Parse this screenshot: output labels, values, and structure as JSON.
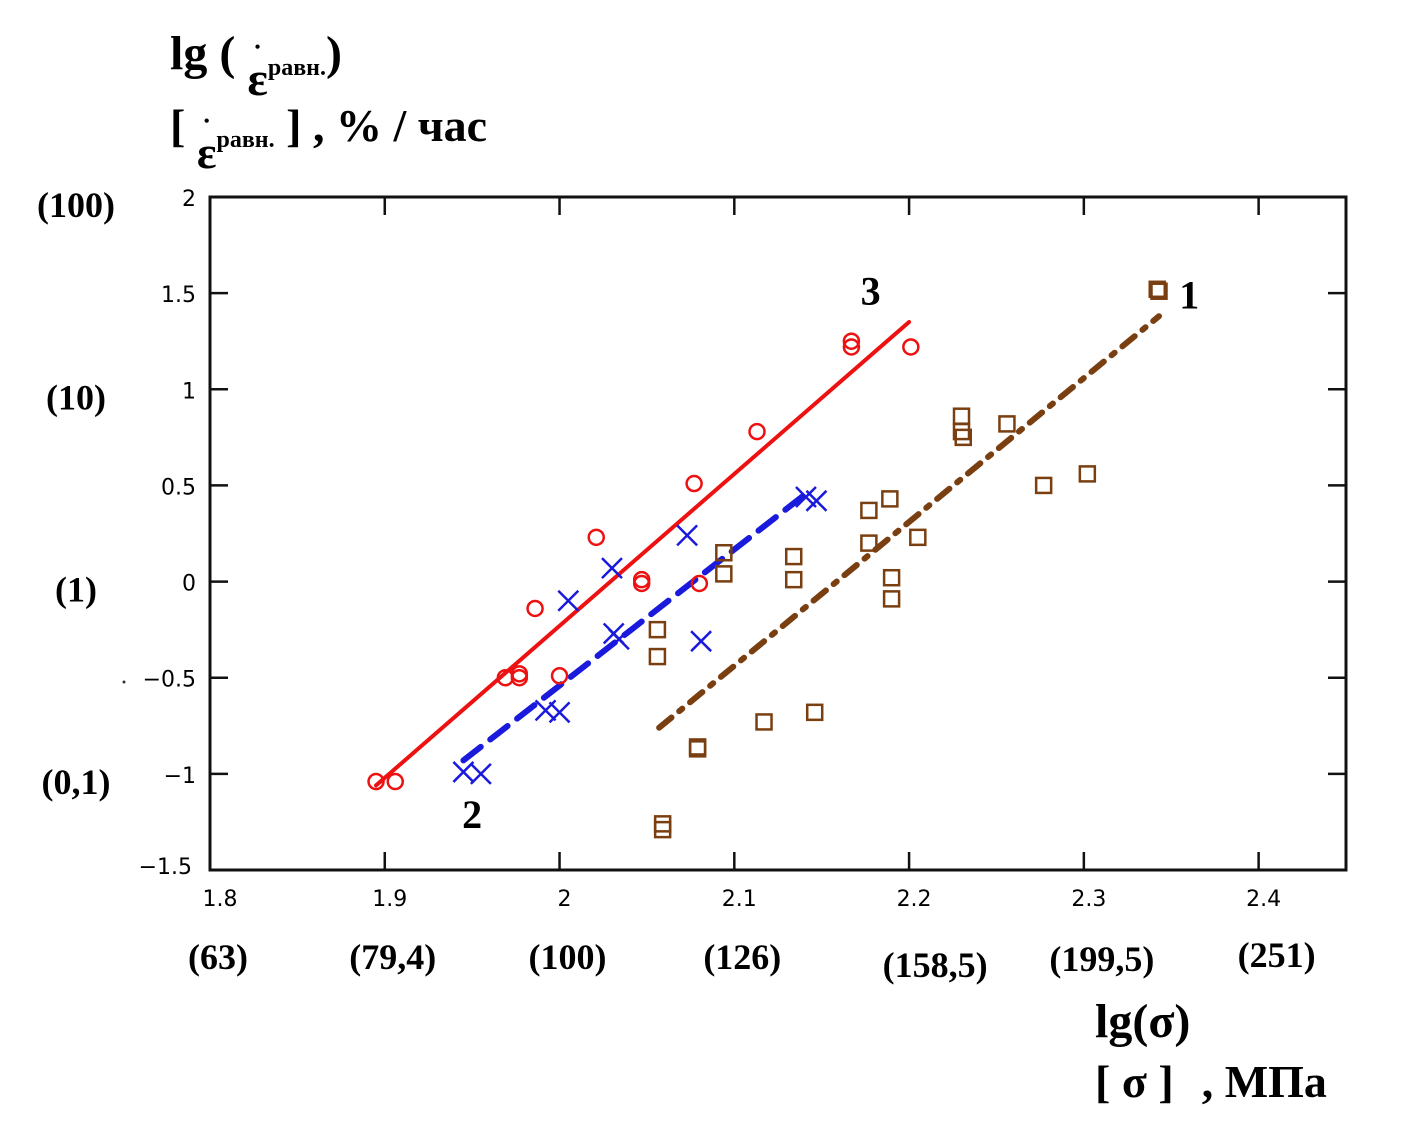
{
  "chart_data": {
    "type": "scatter",
    "title": "",
    "ylabel": {
      "line1_prefix": "lg (",
      "symbol": "ε",
      "dot": "•",
      "subscript": "равн.",
      "line1_suffix": ")",
      "line2_open": "[",
      "line2_close": "]",
      "unit": ", % / час"
    },
    "xlabel": {
      "line1": "lg(σ)",
      "line2_open": "[",
      "symbol": "σ",
      "line2_close": "]",
      "unit": ", МПа"
    },
    "xlim": [
      1.8,
      2.45
    ],
    "ylim": [
      -1.5,
      2
    ],
    "x_ticks": [
      {
        "value": 1.8,
        "label": "1.8",
        "alt": "(63)"
      },
      {
        "value": 1.9,
        "label": "1.9",
        "alt": "(79,4)"
      },
      {
        "value": 2.0,
        "label": "2",
        "alt": "(100)"
      },
      {
        "value": 2.1,
        "label": "2.1",
        "alt": "(126)"
      },
      {
        "value": 2.2,
        "label": "2.2",
        "alt": "(158,5)"
      },
      {
        "value": 2.3,
        "label": "2.3",
        "alt": "(199,5)"
      },
      {
        "value": 2.4,
        "label": "2.4",
        "alt": "(251)"
      }
    ],
    "y_ticks": [
      {
        "value": 2,
        "label": "2",
        "alt": "(100)"
      },
      {
        "value": 1.5,
        "label": "1.5",
        "alt": ""
      },
      {
        "value": 1,
        "label": "1",
        "alt": "(10)"
      },
      {
        "value": 0.5,
        "label": "0.5",
        "alt": ""
      },
      {
        "value": 0,
        "label": "0",
        "alt": "(1)"
      },
      {
        "value": -0.5,
        "label": "-0.5",
        "alt": ""
      },
      {
        "value": -1,
        "label": "-1",
        "alt": "(0,1)"
      },
      {
        "value": -1.5,
        "label": "-1.5",
        "alt": ""
      }
    ],
    "grid": false,
    "legend": "none",
    "series": [
      {
        "name": "1",
        "marker": "square",
        "color": "#7a3f10",
        "line_style": "dash-dot",
        "label_at": [
          2.358,
          1.42
        ],
        "fit_line": [
          [
            2.057,
            -0.76
          ],
          [
            2.343,
            1.38
          ]
        ],
        "points": [
          [
            2.059,
            -1.29
          ],
          [
            2.059,
            -1.26
          ],
          [
            2.056,
            -0.25
          ],
          [
            2.056,
            -0.39
          ],
          [
            2.079,
            -0.86
          ],
          [
            2.079,
            -0.87
          ],
          [
            2.094,
            0.15
          ],
          [
            2.094,
            0.04
          ],
          [
            2.117,
            -0.73
          ],
          [
            2.134,
            0.13
          ],
          [
            2.134,
            0.01
          ],
          [
            2.146,
            -0.68
          ],
          [
            2.177,
            0.37
          ],
          [
            2.177,
            0.2
          ],
          [
            2.189,
            0.43
          ],
          [
            2.19,
            0.02
          ],
          [
            2.19,
            -0.09
          ],
          [
            2.205,
            0.23
          ],
          [
            2.23,
            0.86
          ],
          [
            2.23,
            0.78
          ],
          [
            2.231,
            0.75
          ],
          [
            2.256,
            0.82
          ],
          [
            2.277,
            0.5
          ],
          [
            2.302,
            0.56
          ],
          [
            2.343,
            1.51
          ],
          [
            2.342,
            1.52
          ]
        ]
      },
      {
        "name": "2",
        "marker": "x",
        "color": "#1a1adc",
        "line_style": "dashed",
        "label_at": [
          1.95,
          -1.25
        ],
        "fit_line": [
          [
            1.945,
            -0.93
          ],
          [
            2.14,
            0.45
          ]
        ],
        "points": [
          [
            1.945,
            -0.99
          ],
          [
            1.955,
            -1.0
          ],
          [
            1.992,
            -0.67
          ],
          [
            2.0,
            -0.68
          ],
          [
            2.005,
            -0.1
          ],
          [
            2.03,
            0.07
          ],
          [
            2.031,
            -0.27
          ],
          [
            2.034,
            -0.3
          ],
          [
            2.073,
            0.24
          ],
          [
            2.081,
            -0.31
          ],
          [
            2.141,
            0.44
          ],
          [
            2.147,
            0.42
          ]
        ]
      },
      {
        "name": "3",
        "marker": "circle",
        "color": "#ee1111",
        "line_style": "solid",
        "label_at": [
          2.178,
          1.43
        ],
        "fit_line": [
          [
            1.895,
            -1.06
          ],
          [
            2.2,
            1.35
          ]
        ],
        "points": [
          [
            1.895,
            -1.04
          ],
          [
            1.906,
            -1.04
          ],
          [
            1.969,
            -0.5
          ],
          [
            1.977,
            -0.48
          ],
          [
            1.977,
            -0.5
          ],
          [
            1.986,
            -0.14
          ],
          [
            2.0,
            -0.49
          ],
          [
            2.021,
            0.23
          ],
          [
            2.047,
            0.01
          ],
          [
            2.047,
            -0.01
          ],
          [
            2.077,
            0.51
          ],
          [
            2.08,
            -0.01
          ],
          [
            2.113,
            0.78
          ],
          [
            2.167,
            1.25
          ],
          [
            2.167,
            1.22
          ],
          [
            2.201,
            1.22
          ]
        ]
      }
    ]
  }
}
